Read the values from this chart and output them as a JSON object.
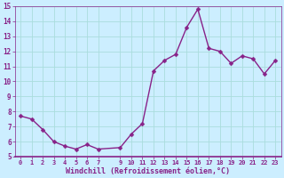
{
  "x": [
    0,
    1,
    2,
    3,
    4,
    5,
    6,
    7,
    9,
    10,
    11,
    12,
    13,
    14,
    15,
    16,
    17,
    18,
    19,
    20,
    21,
    22,
    23
  ],
  "y": [
    7.7,
    7.5,
    6.8,
    6.0,
    5.7,
    5.5,
    5.8,
    5.5,
    5.6,
    6.5,
    7.2,
    10.7,
    11.4,
    11.8,
    13.6,
    14.8,
    12.2,
    12.0,
    11.2,
    11.7,
    11.5,
    10.5,
    11.4
  ],
  "line_color": "#882288",
  "marker_color": "#882288",
  "bg_color": "#cceeff",
  "grid_color": "#aadddd",
  "xlabel": "Windchill (Refroidissement éolien,°C)",
  "ylim": [
    5,
    15
  ],
  "yticks": [
    5,
    6,
    7,
    8,
    9,
    10,
    11,
    12,
    13,
    14,
    15
  ],
  "xticks": [
    0,
    1,
    2,
    3,
    4,
    5,
    6,
    7,
    9,
    10,
    11,
    12,
    13,
    14,
    15,
    16,
    17,
    18,
    19,
    20,
    21,
    22,
    23
  ],
  "tick_color": "#882288",
  "line_width": 1.0,
  "marker_size": 2.5,
  "spine_color": "#882288"
}
